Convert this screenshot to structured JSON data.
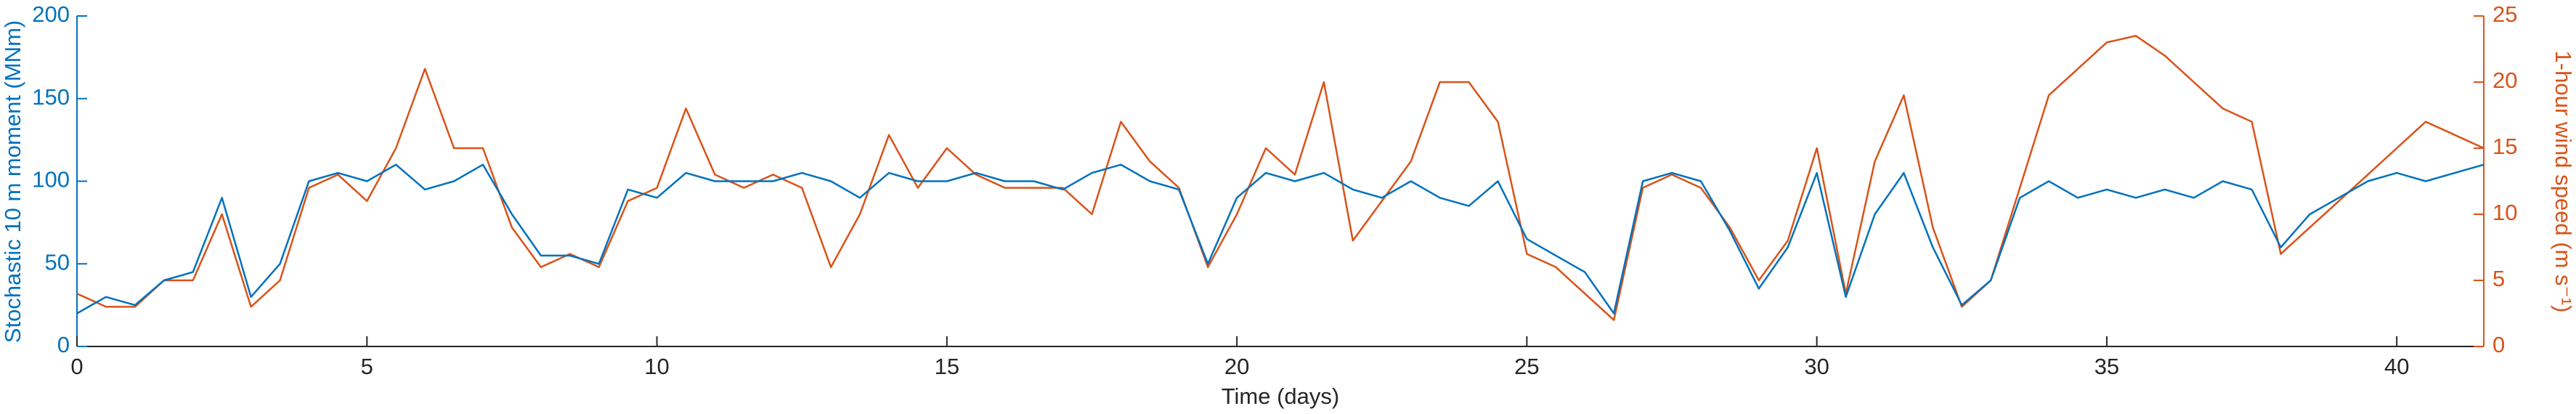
{
  "chart_data": {
    "type": "line",
    "xlabel": "Time (days)",
    "ylabel": "Stochastic 10 m moment (MNm)",
    "y2label": "1-hour wind speed (m s⁻¹)",
    "x": [
      0,
      0.5,
      1,
      1.5,
      2,
      2.5,
      3,
      3.5,
      4,
      4.5,
      5,
      5.5,
      6,
      6.5,
      7,
      7.5,
      8,
      8.5,
      9,
      9.5,
      10,
      10.5,
      11,
      11.5,
      12,
      12.5,
      13,
      13.5,
      14,
      14.5,
      15,
      15.5,
      16,
      16.5,
      17,
      17.5,
      18,
      18.5,
      19,
      19.5,
      20,
      20.5,
      21,
      21.5,
      22,
      22.5,
      23,
      23.5,
      24,
      24.5,
      25,
      25.5,
      26,
      26.5,
      27,
      27.5,
      28,
      28.5,
      29,
      29.5,
      30,
      30.5,
      31,
      31.5,
      32,
      32.5,
      33,
      33.5,
      34,
      34.5,
      35,
      35.5,
      36,
      36.5,
      37,
      37.5,
      38,
      38.5,
      39,
      39.5,
      40,
      40.5,
      41,
      41.5
    ],
    "series": [
      {
        "name": "Stochastic 10 m moment",
        "color": "#0072BD",
        "axis": "y",
        "values": [
          20,
          30,
          25,
          40,
          45,
          90,
          30,
          50,
          100,
          105,
          100,
          110,
          95,
          100,
          110,
          80,
          55,
          55,
          50,
          95,
          90,
          105,
          100,
          100,
          100,
          105,
          100,
          90,
          105,
          100,
          100,
          105,
          100,
          100,
          95,
          105,
          110,
          100,
          95,
          50,
          90,
          105,
          100,
          105,
          95,
          90,
          100,
          90,
          85,
          100,
          65,
          55,
          45,
          20,
          100,
          105,
          100,
          70,
          35,
          60,
          105,
          30,
          80,
          105,
          60,
          25,
          40,
          90,
          100,
          90,
          95,
          90,
          95,
          90,
          100,
          95,
          60,
          80,
          90,
          100,
          105,
          100,
          105,
          110
        ]
      },
      {
        "name": "1-hour wind speed",
        "color": "#D95319",
        "axis": "y2",
        "values": [
          4,
          3,
          3,
          5,
          5,
          10,
          3,
          5,
          12,
          13,
          11,
          15,
          21,
          15,
          15,
          9,
          6,
          7,
          6,
          11,
          12,
          18,
          13,
          12,
          13,
          12,
          6,
          10,
          16,
          12,
          15,
          13,
          12,
          12,
          12,
          10,
          17,
          14,
          12,
          6,
          10,
          15,
          13,
          20,
          8,
          11,
          14,
          20,
          20,
          17,
          7,
          6,
          4,
          2,
          12,
          13,
          12,
          9,
          5,
          8,
          15,
          4,
          14,
          19,
          9,
          3,
          5,
          12,
          19,
          21,
          23,
          23.5,
          22,
          20,
          18,
          17,
          7,
          9,
          11,
          13,
          15,
          17,
          16,
          15
        ]
      }
    ],
    "xlim": [
      0,
      41.5
    ],
    "xticks": [
      0,
      5,
      10,
      15,
      20,
      25,
      30,
      35,
      40
    ],
    "ylim": [
      0,
      200
    ],
    "yticks": [
      0,
      50,
      100,
      150,
      200
    ],
    "y2lim": [
      0,
      25
    ],
    "y2ticks": [
      0,
      5,
      10,
      15,
      20,
      25
    ],
    "grid": false
  }
}
